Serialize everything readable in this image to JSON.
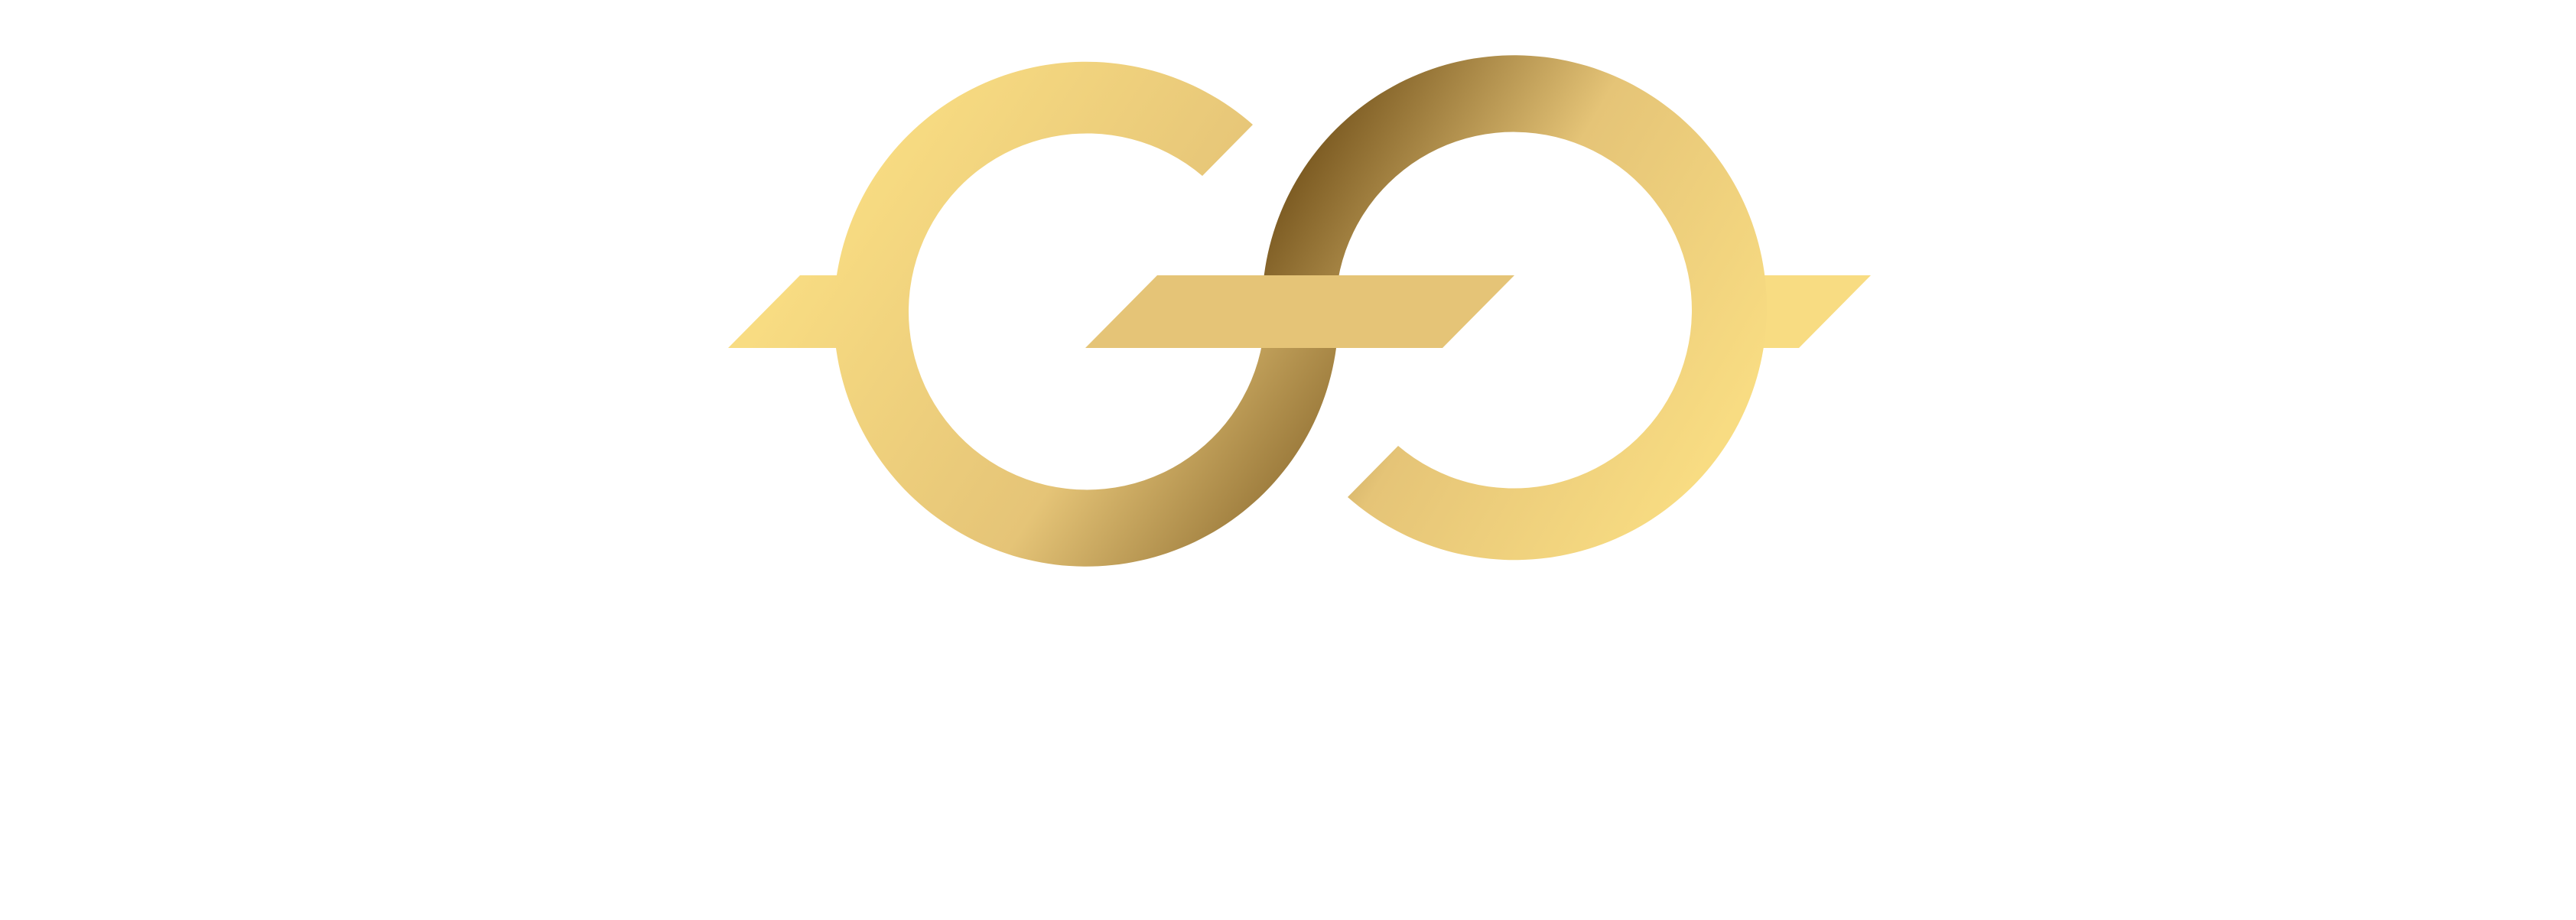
{
  "logo": {
    "icon": "interlinked-double-g-logo-icon",
    "colors": {
      "gold_light": "#f8dc82",
      "gold_mid": "#e5c477",
      "gold_dark": "#7e5d24"
    }
  }
}
